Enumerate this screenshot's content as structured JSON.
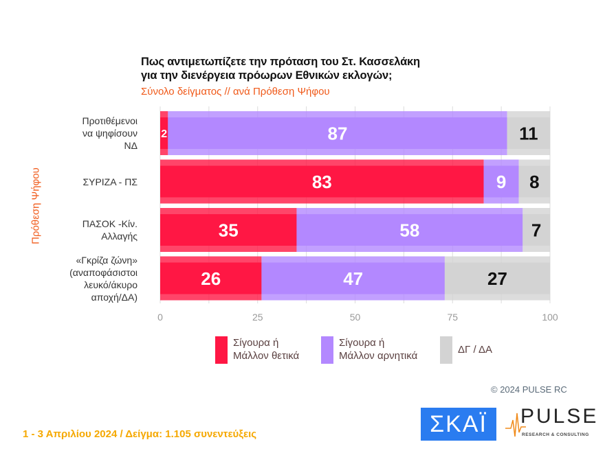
{
  "title_line1": "Πως αντιμετωπίζετε την πρόταση του Στ. Κασσελάκη",
  "title_line2": "για την διενέργεια πρόωρων Εθνικών εκλογών;",
  "subtitle": "Σύνολο δείγματος // ανά Πρόθεση Ψήφου",
  "copyright": "© 2024 PULSE RC",
  "footer": "1 - 3  Απριλίου 2024  /  Δείγμα:  1.105 συνεντεύξεις",
  "logos": {
    "skai": "ΣΚΑΪ",
    "pulse": "PULSE",
    "pulse_sub": "RESEARCH & CONSULTING"
  },
  "chart_data": {
    "type": "bar",
    "orientation": "horizontal",
    "stacked": true,
    "ylabel": "Πρόθεση Ψήφου",
    "categories": [
      "Προτιθέμενοι\nνα ψηφίσουν\nΝΔ",
      "ΣΥΡΙΖΑ - ΠΣ",
      "ΠΑΣΟΚ -Κίν.\nΑλλαγής",
      "«Γκρίζα ζώνη»\n(αναποφάσιστοι\nλευκό/άκυρο\nαποχή/ΔΑ)"
    ],
    "series": [
      {
        "name": "Σίγουρα ή\nΜάλλον θετικά",
        "color": "#ff1744",
        "values": [
          2,
          83,
          35,
          26
        ]
      },
      {
        "name": "Σίγουρα ή\nΜάλλον αρνητικά",
        "color": "#b388ff",
        "values": [
          87,
          9,
          58,
          47
        ]
      },
      {
        "name": "ΔΓ / ΔΑ",
        "color": "#d3d3d3",
        "values": [
          11,
          8,
          7,
          27
        ]
      }
    ],
    "xlim": [
      0,
      100
    ],
    "xticks": [
      "0",
      "25",
      "50",
      "75",
      "100"
    ],
    "grid": true,
    "legend": "bottom"
  }
}
